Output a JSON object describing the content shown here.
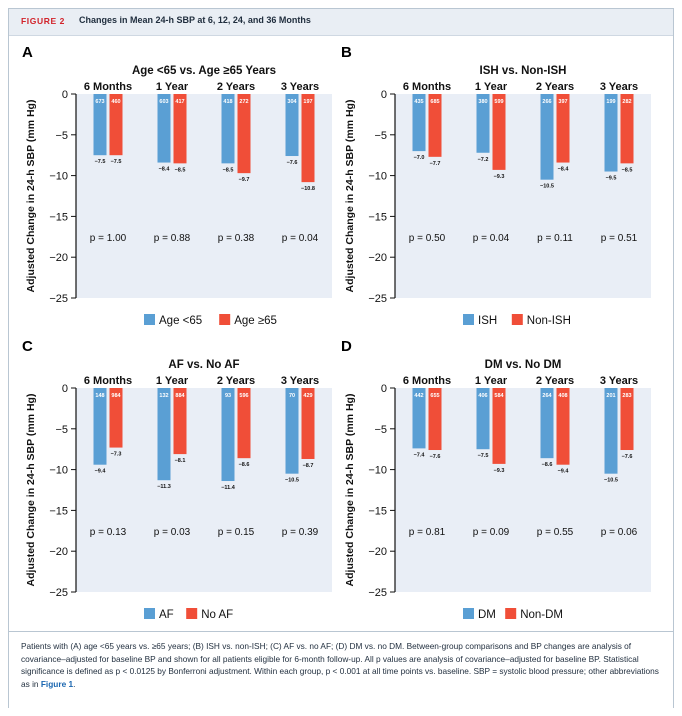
{
  "header": {
    "figure_label": "FIGURE 2",
    "title": "Changes in Mean 24-h SBP at 6, 12, 24, and 36 Months"
  },
  "colors": {
    "series1": "#5a9fd4",
    "series2": "#f04e38",
    "plot_bg": "#e9eef6",
    "header_bg": "#e9eef4",
    "figure_red": "#d2232a"
  },
  "chart_data": [
    {
      "panel": "A",
      "type": "bar",
      "title": "Age <65 vs. Age ≥65 Years",
      "ylabel": "Adjusted Change in 24-h SBP (mm Hg)",
      "ylim": [
        -25,
        0
      ],
      "yticks": [
        0,
        -5,
        -10,
        -15,
        -20,
        -25
      ],
      "categories": [
        "6 Months",
        "1 Year",
        "2 Years",
        "3 Years"
      ],
      "series": [
        {
          "name": "Age <65",
          "values": [
            -7.5,
            -8.4,
            -8.5,
            -7.6
          ],
          "n": [
            673,
            603,
            418,
            304
          ]
        },
        {
          "name": "Age ≥65",
          "values": [
            -7.5,
            -8.5,
            -9.7,
            -10.8
          ],
          "n": [
            460,
            417,
            272,
            197
          ]
        }
      ],
      "pvalues": [
        "p = 1.00",
        "p = 0.88",
        "p = 0.38",
        "p = 0.04"
      ]
    },
    {
      "panel": "B",
      "type": "bar",
      "title": "ISH vs. Non-ISH",
      "ylabel": "Adjusted Change in 24-h SBP (mm Hg)",
      "ylim": [
        -25,
        0
      ],
      "yticks": [
        0,
        -5,
        -10,
        -15,
        -20,
        -25
      ],
      "categories": [
        "6 Months",
        "1 Year",
        "2 Years",
        "3 Years"
      ],
      "series": [
        {
          "name": "ISH",
          "values": [
            -7.0,
            -7.2,
            -10.5,
            -9.5
          ],
          "n": [
            435,
            380,
            266,
            199
          ]
        },
        {
          "name": "Non-ISH",
          "values": [
            -7.7,
            -9.3,
            -8.4,
            -8.5
          ],
          "n": [
            685,
            599,
            397,
            282
          ]
        }
      ],
      "pvalues": [
        "p = 0.50",
        "p = 0.04",
        "p = 0.11",
        "p = 0.51"
      ]
    },
    {
      "panel": "C",
      "type": "bar",
      "title": "AF vs. No AF",
      "ylabel": "Adjusted Change in 24-h SBP (mm Hg)",
      "ylim": [
        -25,
        0
      ],
      "yticks": [
        0,
        -5,
        -10,
        -15,
        -20,
        -25
      ],
      "categories": [
        "6 Months",
        "1 Year",
        "2 Years",
        "3 Years"
      ],
      "series": [
        {
          "name": "AF",
          "values": [
            -9.4,
            -11.3,
            -11.4,
            -10.5
          ],
          "n": [
            148,
            132,
            93,
            70
          ]
        },
        {
          "name": "No AF",
          "values": [
            -7.3,
            -8.1,
            -8.6,
            -8.7
          ],
          "n": [
            984,
            884,
            596,
            429
          ]
        }
      ],
      "pvalues": [
        "p = 0.13",
        "p = 0.03",
        "p = 0.15",
        "p = 0.39"
      ]
    },
    {
      "panel": "D",
      "type": "bar",
      "title": "DM vs. No DM",
      "ylabel": "Adjusted Change in 24-h SBP (mm Hg)",
      "ylim": [
        -25,
        0
      ],
      "yticks": [
        0,
        -5,
        -10,
        -15,
        -20,
        -25
      ],
      "categories": [
        "6 Months",
        "1 Year",
        "2 Years",
        "3 Years"
      ],
      "series": [
        {
          "name": "DM",
          "values": [
            -7.4,
            -7.5,
            -8.6,
            -10.5
          ],
          "n": [
            442,
            406,
            264,
            201
          ]
        },
        {
          "name": "Non-DM",
          "values": [
            -7.6,
            -9.3,
            -9.4,
            -7.6
          ],
          "n": [
            655,
            584,
            408,
            283
          ]
        }
      ],
      "pvalues": [
        "p = 0.81",
        "p = 0.09",
        "p = 0.55",
        "p = 0.06"
      ]
    }
  ],
  "caption": {
    "text": "Patients with (A) age <65 years vs. ≥65 years; (B) ISH vs. non-ISH; (C) AF vs. no AF; (D) DM vs. no DM. Between-group comparisons and BP changes are analysis of covariance–adjusted for baseline BP and shown for all patients eligible for 6-month follow-up. All p values are analysis of covariance–adjusted for baseline BP. Statistical significance is defined as p < 0.0125 by Bonferroni adjustment. Within each group, p < 0.001 at all time points vs. baseline. SBP = systolic blood pressure; other abbreviations as in ",
    "link": "Figure 1",
    "end": "."
  }
}
